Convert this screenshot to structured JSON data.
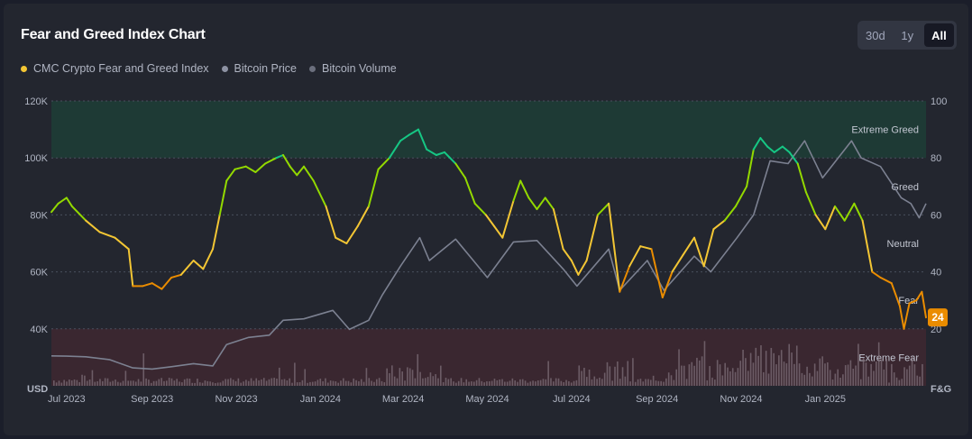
{
  "header": {
    "title": "Fear and Greed Index Chart",
    "ranges": [
      {
        "label": "30d",
        "active": false
      },
      {
        "label": "1y",
        "active": false
      },
      {
        "label": "All",
        "active": true
      }
    ]
  },
  "legend": [
    {
      "label": "CMC Crypto Fear and Greed Index",
      "color": "#f3c634"
    },
    {
      "label": "Bitcoin Price",
      "color": "#8d92a3"
    },
    {
      "label": "Bitcoin Volume",
      "color": "#6b6f7d"
    }
  ],
  "chart_data": {
    "type": "line",
    "x_start": "2023-06-20",
    "x_end": "2025-03-15",
    "x_ticks": [
      {
        "date": "2023-07-01",
        "label": "Jul 2023"
      },
      {
        "date": "2023-09-01",
        "label": "Sep 2023"
      },
      {
        "date": "2023-11-01",
        "label": "Nov 2023"
      },
      {
        "date": "2024-01-01",
        "label": "Jan 2024"
      },
      {
        "date": "2024-03-01",
        "label": "Mar 2024"
      },
      {
        "date": "2024-05-01",
        "label": "May 2024"
      },
      {
        "date": "2024-07-01",
        "label": "Jul 2024"
      },
      {
        "date": "2024-09-01",
        "label": "Sep 2024"
      },
      {
        "date": "2024-11-01",
        "label": "Nov 2024"
      },
      {
        "date": "2025-01-01",
        "label": "Jan 2025"
      }
    ],
    "left_axis": {
      "unit": "USD",
      "ylim": [
        20000,
        120000
      ],
      "ticks": [
        "120K",
        "100K",
        "80K",
        "60K",
        "40K"
      ]
    },
    "right_axis": {
      "unit": "F&G",
      "ylim": [
        0,
        100
      ],
      "ticks": [
        "100",
        "80",
        "60",
        "40",
        "20"
      ]
    },
    "zones": [
      {
        "label": "Extreme Greed",
        "range": [
          80,
          100
        ],
        "color": "#1e3a35"
      },
      {
        "label": "Greed",
        "range": [
          60,
          80
        ],
        "color": "none"
      },
      {
        "label": "Neutral",
        "range": [
          40,
          60
        ],
        "color": "none"
      },
      {
        "label": "Fear",
        "range": [
          20,
          40
        ],
        "color": "none"
      },
      {
        "label": "Extreme Fear",
        "range": [
          0,
          20
        ],
        "color": "#3a2730"
      }
    ],
    "current_value": "24",
    "series": [
      {
        "name": "CMC Crypto Fear and Greed Index",
        "axis": "right",
        "points": [
          [
            "2023-06-20",
            61
          ],
          [
            "2023-06-25",
            64
          ],
          [
            "2023-07-01",
            66
          ],
          [
            "2023-07-05",
            63
          ],
          [
            "2023-07-15",
            58
          ],
          [
            "2023-07-25",
            54
          ],
          [
            "2023-08-05",
            52
          ],
          [
            "2023-08-15",
            48
          ],
          [
            "2023-08-18",
            35
          ],
          [
            "2023-08-25",
            35
          ],
          [
            "2023-09-01",
            36
          ],
          [
            "2023-09-08",
            34
          ],
          [
            "2023-09-15",
            38
          ],
          [
            "2023-09-22",
            39
          ],
          [
            "2023-10-01",
            44
          ],
          [
            "2023-10-08",
            41
          ],
          [
            "2023-10-15",
            48
          ],
          [
            "2023-10-20",
            60
          ],
          [
            "2023-10-25",
            72
          ],
          [
            "2023-10-31",
            76
          ],
          [
            "2023-11-08",
            77
          ],
          [
            "2023-11-15",
            75
          ],
          [
            "2023-11-22",
            78
          ],
          [
            "2023-11-30",
            80
          ],
          [
            "2023-12-05",
            81
          ],
          [
            "2023-12-10",
            77
          ],
          [
            "2023-12-15",
            74
          ],
          [
            "2023-12-20",
            77
          ],
          [
            "2023-12-27",
            72
          ],
          [
            "2024-01-05",
            63
          ],
          [
            "2024-01-12",
            52
          ],
          [
            "2024-01-20",
            50
          ],
          [
            "2024-01-28",
            56
          ],
          [
            "2024-02-05",
            63
          ],
          [
            "2024-02-12",
            76
          ],
          [
            "2024-02-20",
            80
          ],
          [
            "2024-02-28",
            86
          ],
          [
            "2024-03-05",
            88
          ],
          [
            "2024-03-12",
            90
          ],
          [
            "2024-03-18",
            83
          ],
          [
            "2024-03-25",
            81
          ],
          [
            "2024-03-31",
            82
          ],
          [
            "2024-04-08",
            78
          ],
          [
            "2024-04-15",
            73
          ],
          [
            "2024-04-22",
            64
          ],
          [
            "2024-04-30",
            60
          ],
          [
            "2024-05-06",
            56
          ],
          [
            "2024-05-12",
            52
          ],
          [
            "2024-05-20",
            65
          ],
          [
            "2024-05-25",
            72
          ],
          [
            "2024-05-31",
            66
          ],
          [
            "2024-06-06",
            62
          ],
          [
            "2024-06-12",
            66
          ],
          [
            "2024-06-18",
            62
          ],
          [
            "2024-06-25",
            48
          ],
          [
            "2024-07-01",
            44
          ],
          [
            "2024-07-06",
            39
          ],
          [
            "2024-07-12",
            44
          ],
          [
            "2024-07-20",
            60
          ],
          [
            "2024-07-28",
            64
          ],
          [
            "2024-08-05",
            33
          ],
          [
            "2024-08-12",
            42
          ],
          [
            "2024-08-20",
            49
          ],
          [
            "2024-08-28",
            48
          ],
          [
            "2024-09-05",
            31
          ],
          [
            "2024-09-12",
            40
          ],
          [
            "2024-09-20",
            46
          ],
          [
            "2024-09-28",
            52
          ],
          [
            "2024-10-05",
            42
          ],
          [
            "2024-10-12",
            55
          ],
          [
            "2024-10-20",
            58
          ],
          [
            "2024-10-28",
            63
          ],
          [
            "2024-11-05",
            70
          ],
          [
            "2024-11-10",
            83
          ],
          [
            "2024-11-15",
            87
          ],
          [
            "2024-11-20",
            84
          ],
          [
            "2024-11-25",
            82
          ],
          [
            "2024-12-01",
            84
          ],
          [
            "2024-12-06",
            82
          ],
          [
            "2024-12-12",
            78
          ],
          [
            "2024-12-18",
            68
          ],
          [
            "2024-12-25",
            60
          ],
          [
            "2025-01-01",
            55
          ],
          [
            "2025-01-08",
            63
          ],
          [
            "2025-01-15",
            58
          ],
          [
            "2025-01-22",
            64
          ],
          [
            "2025-01-28",
            58
          ],
          [
            "2025-02-04",
            40
          ],
          [
            "2025-02-10",
            38
          ],
          [
            "2025-02-18",
            36
          ],
          [
            "2025-02-24",
            28
          ],
          [
            "2025-02-27",
            20
          ],
          [
            "2025-03-03",
            29
          ],
          [
            "2025-03-08",
            30
          ],
          [
            "2025-03-12",
            33
          ],
          [
            "2025-03-15",
            24
          ]
        ]
      },
      {
        "name": "Bitcoin Price",
        "axis": "left",
        "points": [
          [
            "2023-06-20",
            30500
          ],
          [
            "2023-07-01",
            30400
          ],
          [
            "2023-07-15",
            30200
          ],
          [
            "2023-08-01",
            29200
          ],
          [
            "2023-08-18",
            26300
          ],
          [
            "2023-09-01",
            25900
          ],
          [
            "2023-09-15",
            26700
          ],
          [
            "2023-10-01",
            27800
          ],
          [
            "2023-10-15",
            27000
          ],
          [
            "2023-10-25",
            34500
          ],
          [
            "2023-11-10",
            37000
          ],
          [
            "2023-11-25",
            37800
          ],
          [
            "2023-12-05",
            43000
          ],
          [
            "2023-12-20",
            43500
          ],
          [
            "2024-01-10",
            46500
          ],
          [
            "2024-01-22",
            39800
          ],
          [
            "2024-02-05",
            43000
          ],
          [
            "2024-02-15",
            52000
          ],
          [
            "2024-02-28",
            62000
          ],
          [
            "2024-03-13",
            72000
          ],
          [
            "2024-03-20",
            64000
          ],
          [
            "2024-04-08",
            71500
          ],
          [
            "2024-04-20",
            64500
          ],
          [
            "2024-05-01",
            58000
          ],
          [
            "2024-05-20",
            70500
          ],
          [
            "2024-06-06",
            71000
          ],
          [
            "2024-06-25",
            61000
          ],
          [
            "2024-07-05",
            55000
          ],
          [
            "2024-07-28",
            68000
          ],
          [
            "2024-08-05",
            53500
          ],
          [
            "2024-08-25",
            64000
          ],
          [
            "2024-09-06",
            53500
          ],
          [
            "2024-09-28",
            65500
          ],
          [
            "2024-10-10",
            60000
          ],
          [
            "2024-10-29",
            72000
          ],
          [
            "2024-11-10",
            80000
          ],
          [
            "2024-11-22",
            99000
          ],
          [
            "2024-12-05",
            98000
          ],
          [
            "2024-12-17",
            106000
          ],
          [
            "2024-12-30",
            93000
          ],
          [
            "2025-01-20",
            106000
          ],
          [
            "2025-01-27",
            100000
          ],
          [
            "2025-02-10",
            97000
          ],
          [
            "2025-02-25",
            86000
          ],
          [
            "2025-03-04",
            84000
          ],
          [
            "2025-03-10",
            79000
          ],
          [
            "2025-03-15",
            84000
          ]
        ]
      }
    ]
  }
}
